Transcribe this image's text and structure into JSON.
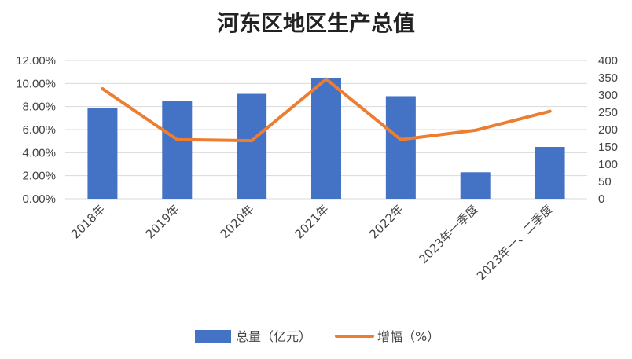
{
  "chart_data": {
    "type": "bar",
    "title": "河东区地区生产总值",
    "categories": [
      "2018年",
      "2019年",
      "2020年",
      "2021年",
      "2022年",
      "2023年一季度",
      "2023年一、二季度"
    ],
    "series": [
      {
        "name": "总量（亿元）",
        "type": "bar",
        "axis": "left",
        "color": "#4472C4",
        "values": [
          0.0785,
          0.085,
          0.091,
          0.105,
          0.089,
          0.023,
          0.045
        ]
      },
      {
        "name": "增幅（%）",
        "type": "line",
        "axis": "right",
        "color": "#ED7D31",
        "values": [
          318,
          171,
          168,
          346,
          171,
          198,
          253
        ]
      }
    ],
    "ylim_left": [
      0,
      0.12
    ],
    "ylim_right": [
      0,
      400
    ],
    "yticks_left": [
      "0.00%",
      "2.00%",
      "4.00%",
      "6.00%",
      "8.00%",
      "10.00%",
      "12.00%"
    ],
    "yticks_right": [
      "0",
      "50",
      "100",
      "150",
      "200",
      "250",
      "300",
      "350",
      "400"
    ],
    "grid": true,
    "legend_position": "bottom"
  }
}
